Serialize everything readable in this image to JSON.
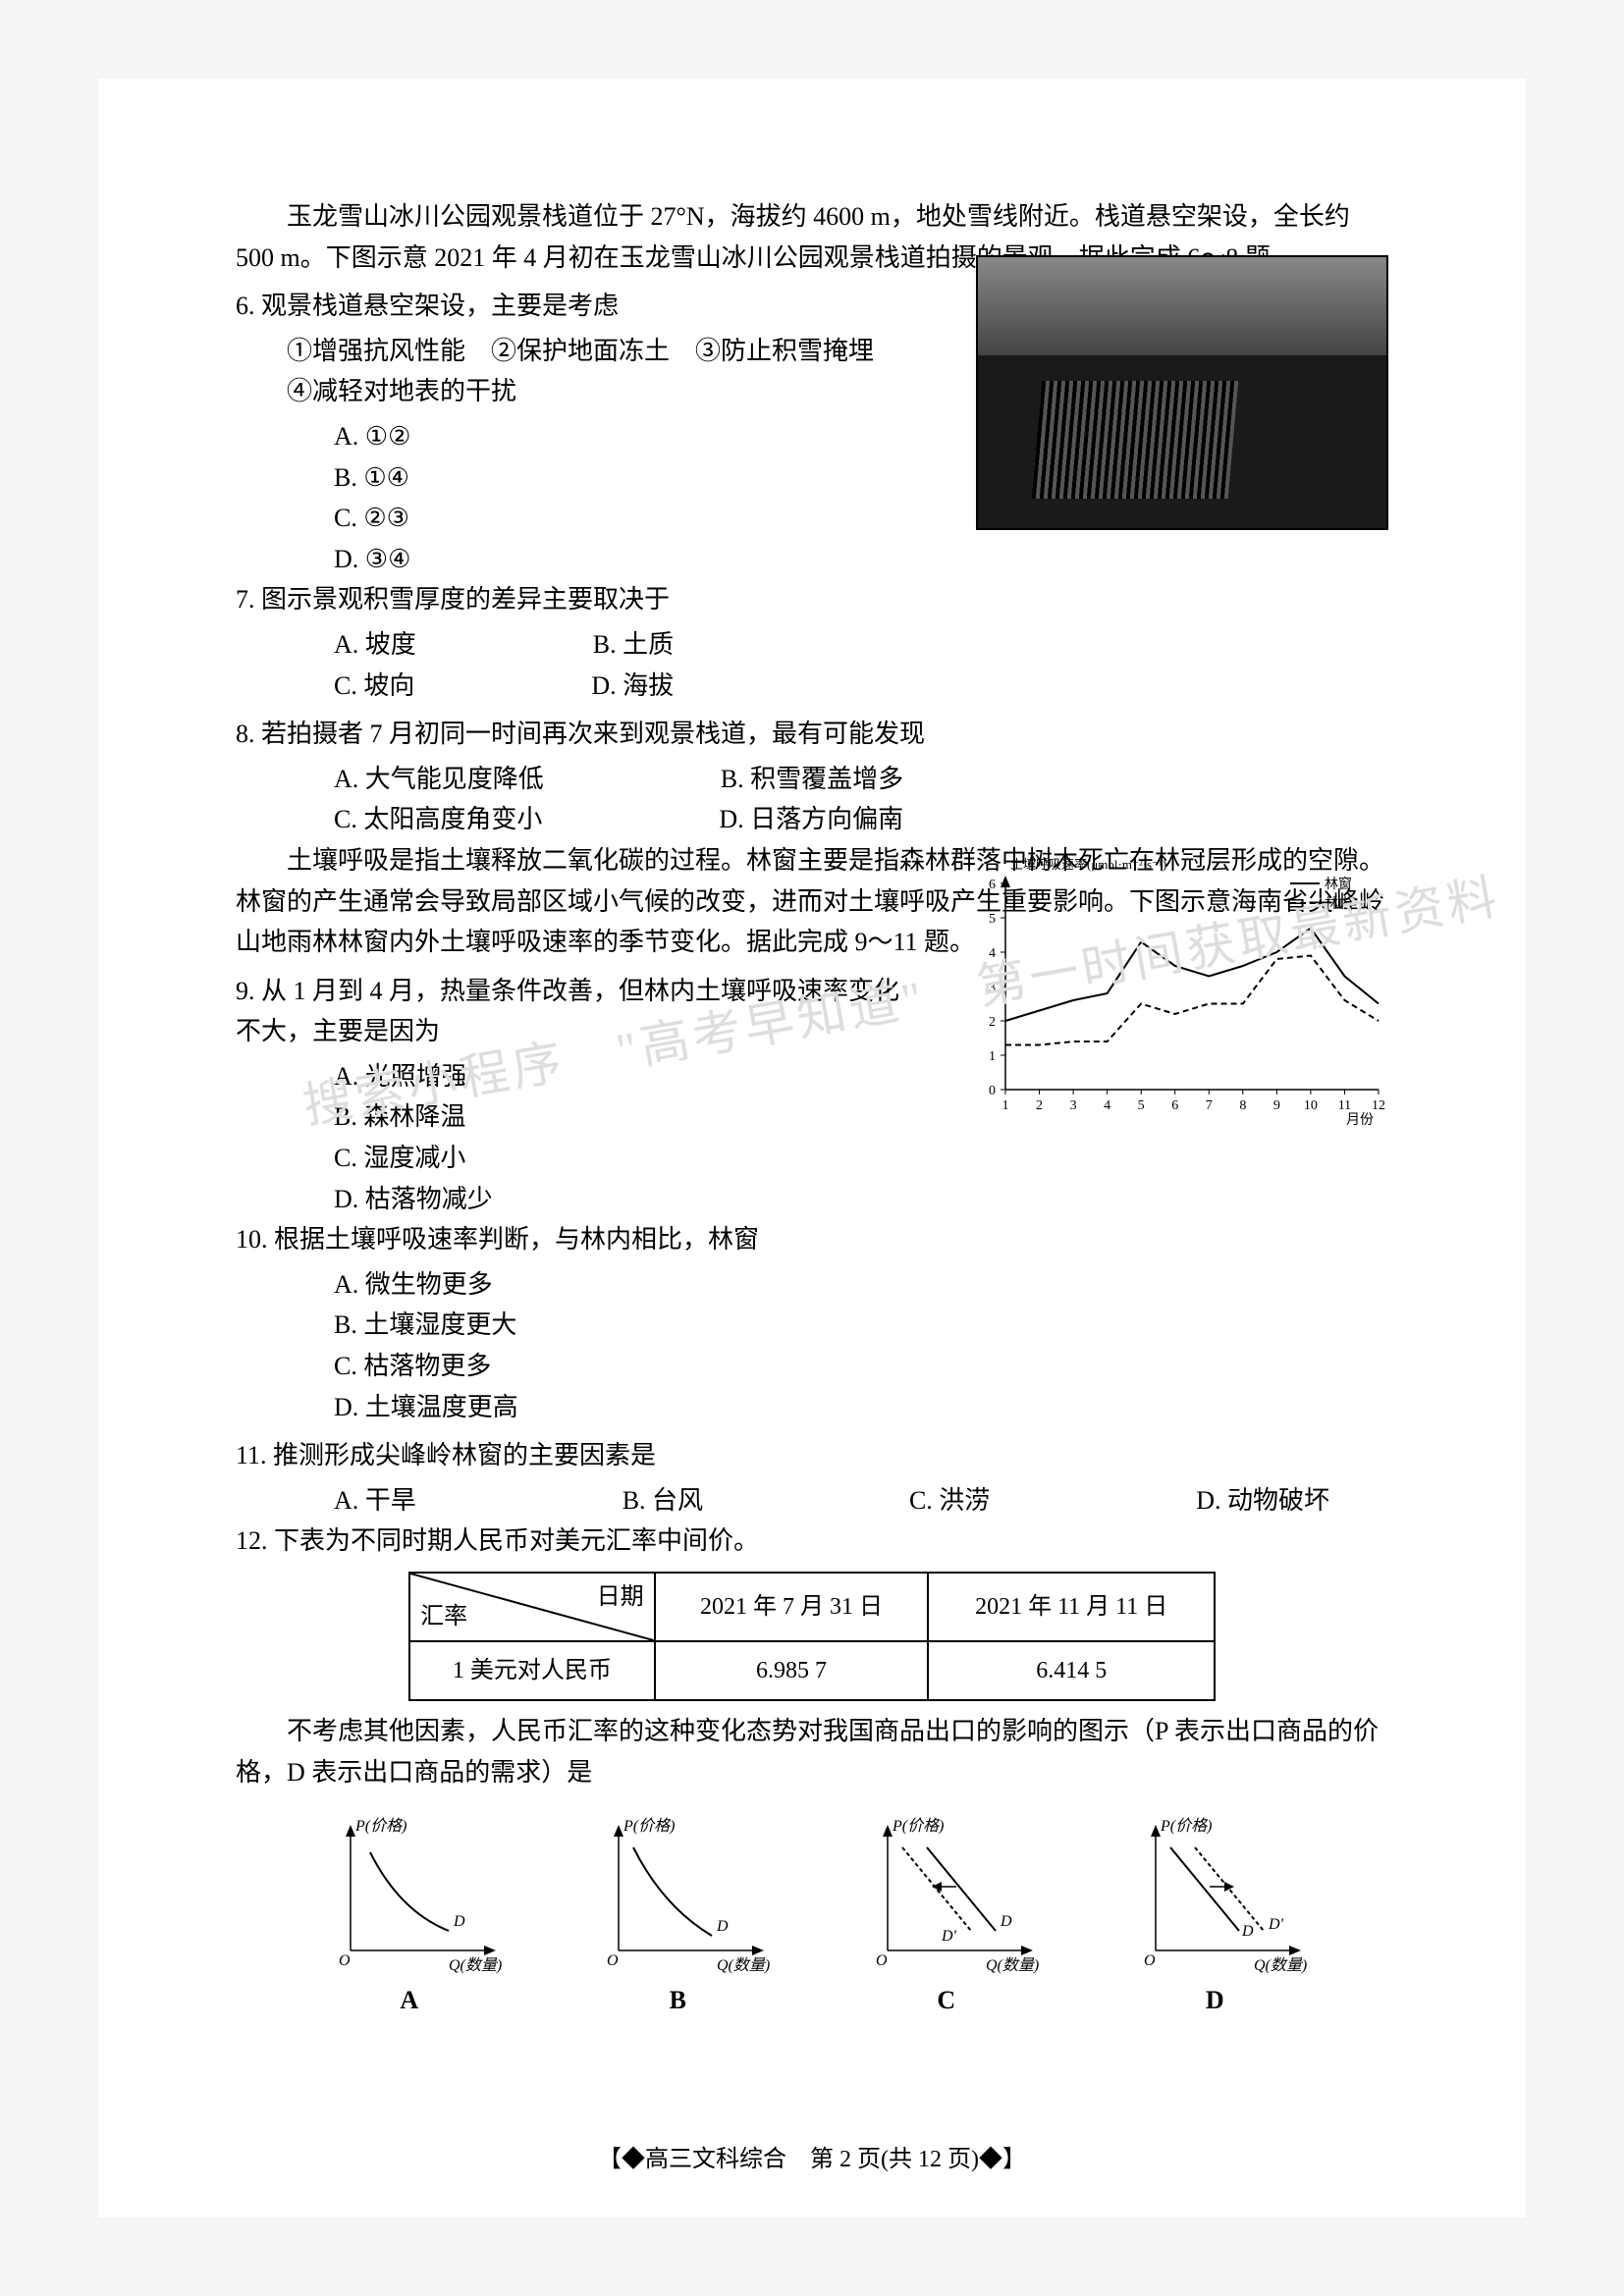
{
  "intro1": "玉龙雪山冰川公园观景栈道位于 27°N，海拔约 4600 m，地处雪线附近。栈道悬空架设，全长约 500 m。下图示意 2021 年 4 月初在玉龙雪山冰川公园观景栈道拍摄的景观。据此完成 6～8 题。",
  "q6": {
    "stem": "6. 观景栈道悬空架设，主要是考虑",
    "items": "①增强抗风性能　②保护地面冻土　③防止积雪掩埋　④减轻对地表的干扰",
    "a": "A. ①②",
    "b": "B. ①④",
    "c": "C. ②③",
    "d": "D. ③④"
  },
  "q7": {
    "stem": "7. 图示景观积雪厚度的差异主要取决于",
    "a": "A. 坡度",
    "b": "B. 土质",
    "c": "C. 坡向",
    "d": "D. 海拔"
  },
  "q8": {
    "stem": "8. 若拍摄者 7 月初同一时间再次来到观景栈道，最有可能发现",
    "a": "A. 大气能见度降低",
    "b": "B. 积雪覆盖增多",
    "c": "C. 太阳高度角变小",
    "d": "D. 日落方向偏南"
  },
  "intro2": "土壤呼吸是指土壤释放二氧化碳的过程。林窗主要是指森林群落中树木死亡在林冠层形成的空隙。林窗的产生通常会导致局部区域小气候的改变，进而对土壤呼吸产生重要影响。下图示意海南省尖峰岭山地雨林林窗内外土壤呼吸速率的季节变化。据此完成 9～11 题。",
  "q9": {
    "stem": "9. 从 1 月到 4 月，热量条件改善，但林内土壤呼吸速率变化不大，主要是因为",
    "a": "A. 光照增强",
    "b": "B. 森林降温",
    "c": "C. 湿度减小",
    "d": "D. 枯落物减少"
  },
  "q10": {
    "stem": "10. 根据土壤呼吸速率判断，与林内相比，林窗",
    "a": "A. 微生物更多",
    "b": "B. 土壤湿度更大",
    "c": "C. 枯落物更多",
    "d": "D. 土壤温度更高"
  },
  "q11": {
    "stem": "11. 推测形成尖峰岭林窗的主要因素是",
    "a": "A. 干旱",
    "b": "B. 台风",
    "c": "C. 洪涝",
    "d": "D. 动物破坏"
  },
  "q12": {
    "stem": "12. 下表为不同时期人民币对美元汇率中间价。",
    "table": {
      "corner_top": "日期",
      "corner_bottom": "汇率",
      "col1": "2021 年 7 月 31 日",
      "col2": "2021 年 11 月 11 日",
      "row_label": "1 美元对人民币",
      "val1": "6.985 7",
      "val2": "6.414 5"
    },
    "tail": "不考虑其他因素，人民币汇率的这种变化态势对我国商品出口的影响的图示（P 表示出口商品的价格，D 表示出口商品的需求）是",
    "optA": "A",
    "optB": "B",
    "optC": "C",
    "optD": "D"
  },
  "chart": {
    "title": "土壤呼吸速率(μmol·m⁻²·s⁻¹)",
    "xlabel": "月份",
    "yticks": [
      0,
      1,
      2,
      3,
      4,
      5,
      6
    ],
    "xticks": [
      1,
      2,
      3,
      4,
      5,
      6,
      7,
      8,
      9,
      10,
      11,
      12
    ],
    "legend": {
      "outer": "林窗",
      "inner": "林内"
    },
    "series_outer": {
      "style": "solid",
      "color": "#000000",
      "points": [
        [
          1,
          2.0
        ],
        [
          2,
          2.3
        ],
        [
          3,
          2.6
        ],
        [
          4,
          2.8
        ],
        [
          5,
          4.3
        ],
        [
          6,
          3.6
        ],
        [
          7,
          3.3
        ],
        [
          8,
          3.6
        ],
        [
          9,
          4.0
        ],
        [
          10,
          4.7
        ],
        [
          11,
          3.3
        ],
        [
          12,
          2.5
        ]
      ]
    },
    "series_inner": {
      "style": "dashed",
      "color": "#000000",
      "points": [
        [
          1,
          1.3
        ],
        [
          2,
          1.3
        ],
        [
          3,
          1.4
        ],
        [
          4,
          1.4
        ],
        [
          5,
          2.5
        ],
        [
          6,
          2.2
        ],
        [
          7,
          2.5
        ],
        [
          8,
          2.5
        ],
        [
          9,
          3.8
        ],
        [
          10,
          3.9
        ],
        [
          11,
          2.6
        ],
        [
          12,
          2.0
        ]
      ]
    },
    "ylim": [
      0,
      6
    ],
    "xlim": [
      1,
      12
    ],
    "background_color": "#ffffff"
  },
  "econ": {
    "plabel": "P(价格)",
    "qlabel": "Q(数量)",
    "d": "D",
    "dprime": "D'",
    "origin": "O"
  },
  "footer": "【◆高三文科综合　第 2 页(共 12 页)◆】",
  "watermark": "搜索小程序　\"高考早知道\"　第一时间获取最新资料"
}
